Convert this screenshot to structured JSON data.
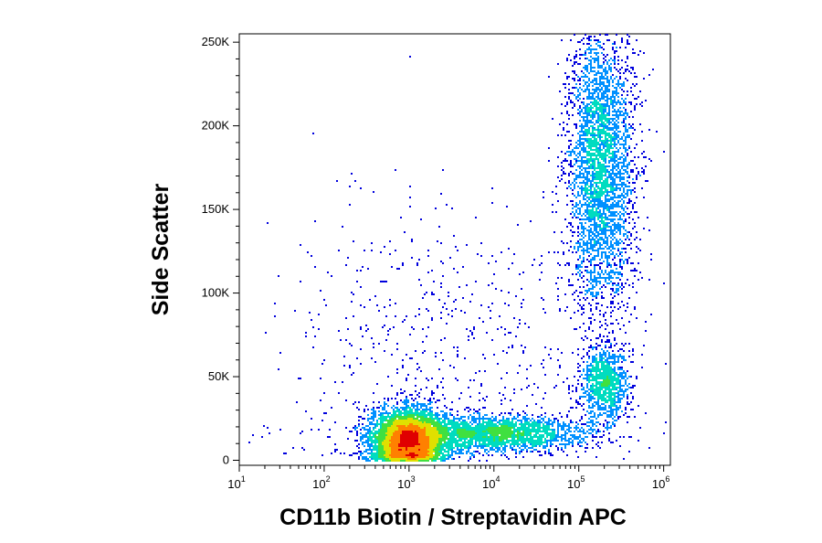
{
  "chart_data": {
    "type": "scatter",
    "style": "density-colored flow cytometry dot plot",
    "xlabel": "CD11b Biotin / Streptavidin APC",
    "ylabel": "Side Scatter",
    "x_scale": "log",
    "x_ticks": [
      {
        "base": "10",
        "exp": "1",
        "value": 10
      },
      {
        "base": "10",
        "exp": "2",
        "value": 100
      },
      {
        "base": "10",
        "exp": "3",
        "value": 1000
      },
      {
        "base": "10",
        "exp": "4",
        "value": 10000
      },
      {
        "base": "10",
        "exp": "5",
        "value": 100000
      },
      {
        "base": "10",
        "exp": "6",
        "value": 1000000
      }
    ],
    "y_scale": "linear",
    "y_ticks": [
      {
        "label": "0",
        "value": 0
      },
      {
        "label": "50K",
        "value": 50000
      },
      {
        "label": "100K",
        "value": 100000
      },
      {
        "label": "150K",
        "value": 150000
      },
      {
        "label": "200K",
        "value": 200000
      },
      {
        "label": "250K",
        "value": 250000
      }
    ],
    "xlim": [
      10,
      1200000
    ],
    "ylim": [
      -3000,
      255000
    ],
    "grid": false,
    "density_colors": [
      "#0000dd",
      "#0090ff",
      "#00dcc0",
      "#40e040",
      "#e0e000",
      "#ff8000",
      "#e00000"
    ],
    "populations": [
      {
        "x_center": 1000,
        "x_spread_decades": 0.22,
        "y_center": 12000,
        "y_spread": 9000,
        "share": 0.42
      },
      {
        "x_center": 10000,
        "x_spread_decades": 0.55,
        "y_center": 16000,
        "y_spread": 5000,
        "share": 0.18
      },
      {
        "x_center": 180000,
        "x_spread_decades": 0.2,
        "y_center": 175000,
        "y_spread": 45000,
        "share": 0.27
      },
      {
        "x_center": 200000,
        "x_spread_decades": 0.14,
        "y_center": 45000,
        "y_spread": 11000,
        "share": 0.08
      },
      {
        "x_center": 2000,
        "x_spread_decades": 1.0,
        "y_center": 60000,
        "y_spread": 50000,
        "share": 0.05
      }
    ]
  }
}
